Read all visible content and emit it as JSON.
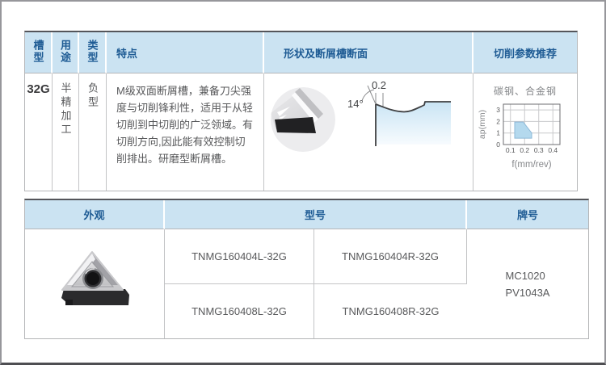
{
  "page": {
    "background": "#ffffff"
  },
  "colors": {
    "header_bg": "#cbe3f2",
    "header_text": "#1e5b94",
    "body_text": "#58595b",
    "top_rule": "#54555a",
    "table_border": "#b5b6b8",
    "region_fill": "#b4d9ee",
    "region_stroke": "#8db9d8",
    "grid": "#c8c9cb",
    "plot_border": "#6d6e71"
  },
  "table1": {
    "headers": [
      "槽型",
      "用途",
      "类型",
      "特点",
      "形状及断屑槽断面",
      "切削参数推荐"
    ],
    "row": {
      "slot_type": "32G",
      "usage": "半精加工",
      "insert_class": "负型",
      "features": "M级双面断屑槽，兼备刀尖强度与切削锋利性，适用于从轻切削到中切削的广泛领域。有切削方向,因此能有效控制切削排出。研磨型断屑槽。",
      "profile": {
        "land_width": "0.2",
        "rake_angle": "14°"
      }
    }
  },
  "chart_data": {
    "type": "area",
    "title": "碳钢、合金钢",
    "xlabel": "f(mm/rev)",
    "ylabel": "ap(mm)",
    "xlim": [
      0.05,
      0.45
    ],
    "ylim": [
      0,
      3.5
    ],
    "x_ticks": [
      "0.1",
      "0.2",
      "0.3",
      "0.4"
    ],
    "y_ticks": [
      "0",
      "1",
      "2",
      "3"
    ],
    "grid": true,
    "legend": "none",
    "region": {
      "label": "recommended-cutting-range",
      "points": [
        [
          0.13,
          0.55
        ],
        [
          0.13,
          1.95
        ],
        [
          0.19,
          1.95
        ],
        [
          0.25,
          1.0
        ],
        [
          0.25,
          0.55
        ]
      ]
    }
  },
  "table2": {
    "headers": [
      "外观",
      "型号",
      "牌号"
    ],
    "models": [
      [
        "TNMG160404L-32G",
        "TNMG160404R-32G"
      ],
      [
        "TNMG160408L-32G",
        "TNMG160408R-32G"
      ]
    ],
    "grades": [
      "MC1020",
      "PV1043A"
    ]
  }
}
